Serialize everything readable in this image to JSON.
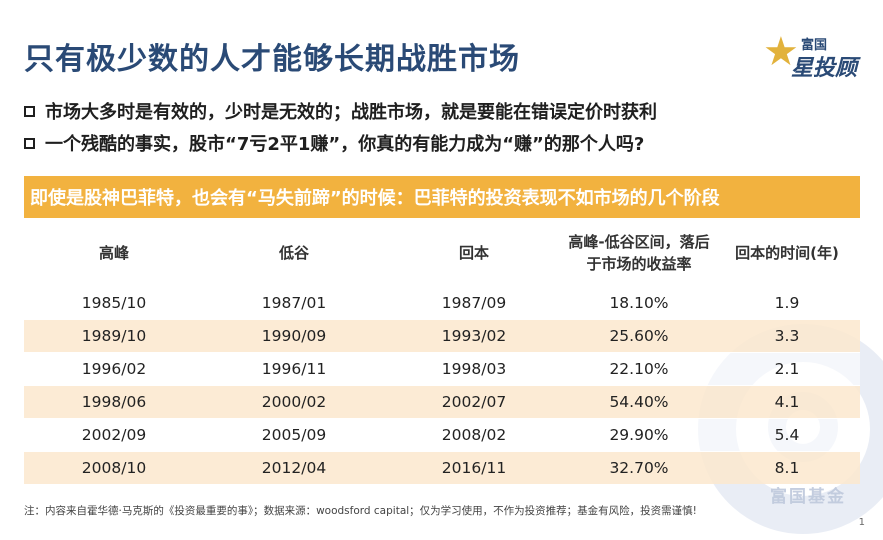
{
  "title": "只有极少数的人才能够长期战胜市场",
  "logo": {
    "line1": "富国",
    "line2": "星投顾",
    "icon": "star-icon"
  },
  "bullets": [
    "市场大多时是有效的，少时是无效的；战胜市场，就是要能在错误定价时获利",
    "一个残酷的事实，股市“7亏2平1赚”，你真的有能力成为“赚”的那个人吗?"
  ],
  "banner": "即使是股神巴菲特，也会有“马失前蹄”的时候：巴菲特的投资表现不如市场的几个阶段",
  "table": {
    "headers": [
      "高峰",
      "低谷",
      "回本",
      "高峰-低谷区间，落后于市场的收益率",
      "回本的时间(年)"
    ],
    "rows": [
      [
        "1985/10",
        "1987/01",
        "1987/09",
        "18.10%",
        "1.9"
      ],
      [
        "1989/10",
        "1990/09",
        "1993/02",
        "25.60%",
        "3.3"
      ],
      [
        "1996/02",
        "1996/11",
        "1998/03",
        "22.10%",
        "2.1"
      ],
      [
        "1998/06",
        "2000/02",
        "2002/07",
        "54.40%",
        "4.1"
      ],
      [
        "2002/09",
        "2005/09",
        "2008/02",
        "29.90%",
        "5.4"
      ],
      [
        "2008/10",
        "2012/04",
        "2016/11",
        "32.70%",
        "8.1"
      ]
    ]
  },
  "watermark": "富国基金",
  "note": "注：内容来自霍华德·马克斯的《投资最重要的事》；数据来源：woodsford capital；仅为学习使用，不作为投资推荐；基金有风险，投资需谨慎!",
  "page_number": "1",
  "colors": {
    "title": "#2a4a76",
    "banner": "#f2b23f",
    "row_band": "#fbe8ce",
    "logo_star": "#e2b23c"
  }
}
